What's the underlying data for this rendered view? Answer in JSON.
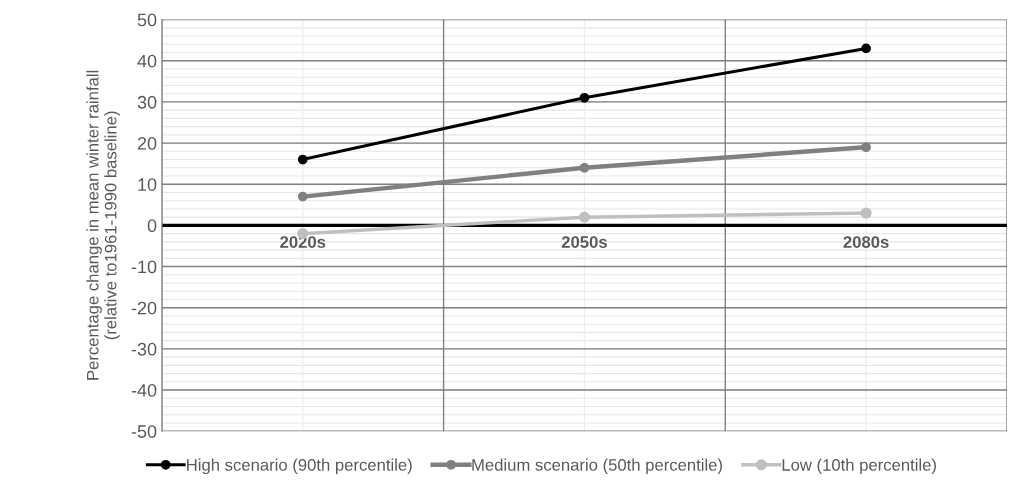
{
  "chart_data": {
    "type": "line",
    "ylabel": "Percentage change in mean winter rainfall\n(relative to1961-1990 baseline)",
    "categories": [
      "2020s",
      "2050s",
      "2080s"
    ],
    "series": [
      {
        "name": "High scenario (90th percentile)",
        "color": "#000000",
        "values": [
          16,
          31,
          43
        ]
      },
      {
        "name": "Medium scenario (50th percentile)",
        "color": "#808080",
        "values": [
          7,
          14,
          19
        ]
      },
      {
        "name": "Low (10th percentile)",
        "color": "#bfbfbf",
        "values": [
          -2,
          2,
          3
        ]
      }
    ],
    "ylim": [
      -50,
      50
    ],
    "yticks": [
      -50,
      -40,
      -30,
      -20,
      -10,
      0,
      10,
      20,
      30,
      40,
      50
    ],
    "grid": true,
    "legend": "bottom",
    "marker": "circle",
    "line_style": "solid"
  }
}
